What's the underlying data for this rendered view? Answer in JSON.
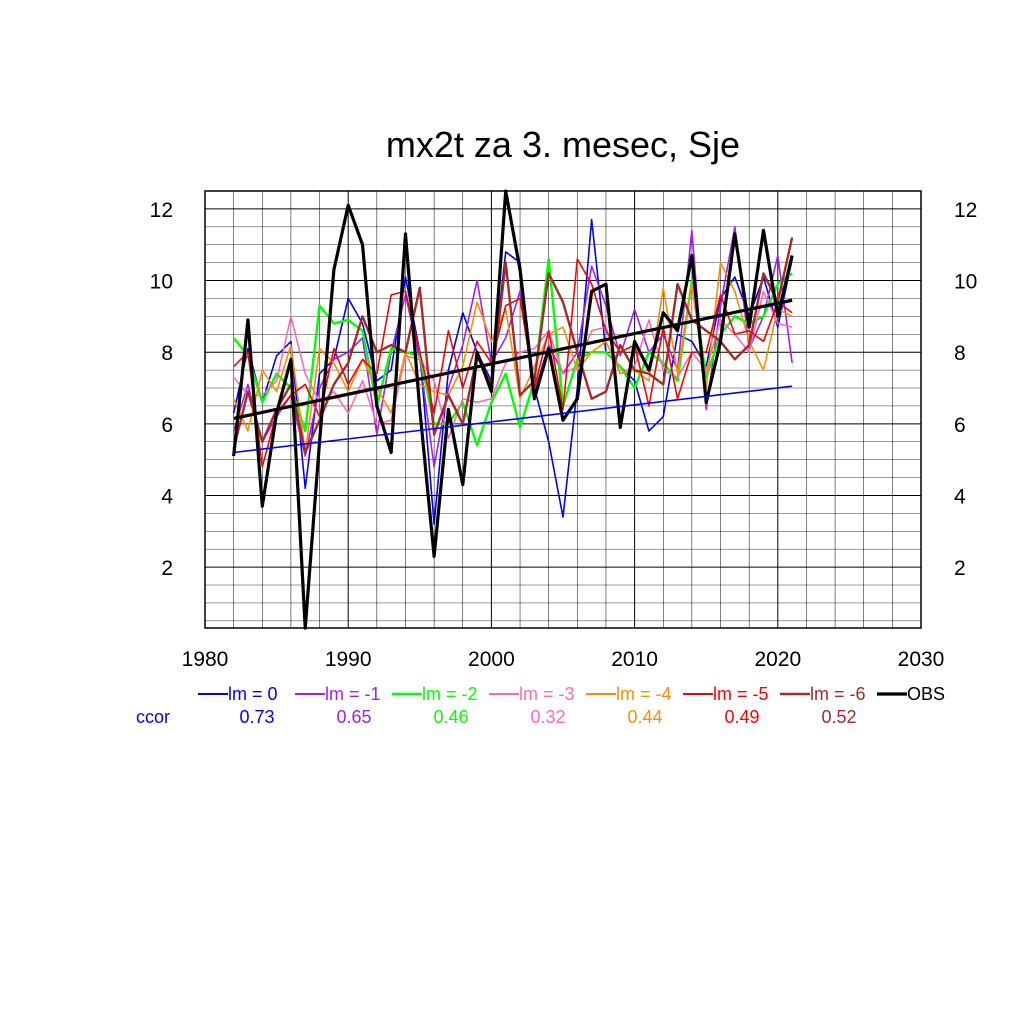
{
  "chart_data": {
    "type": "line",
    "title": "mx2t za 3. mesec, Sje",
    "xlim": [
      1980,
      2030
    ],
    "ylim": [
      0.3,
      12.5
    ],
    "xticks": [
      1980,
      1990,
      2000,
      2010,
      2020,
      2030
    ],
    "yticks": [
      2,
      4,
      6,
      8,
      10,
      12
    ],
    "x": [
      1982,
      1983,
      1984,
      1985,
      1986,
      1987,
      1988,
      1989,
      1990,
      1991,
      1992,
      1993,
      1994,
      1995,
      1996,
      1997,
      1998,
      1999,
      2000,
      2001,
      2002,
      2003,
      2004,
      2005,
      2006,
      2007,
      2008,
      2009,
      2010,
      2011,
      2012,
      2013,
      2014,
      2015,
      2016,
      2017,
      2018,
      2019,
      2020,
      2021
    ],
    "grid": true,
    "series": [
      {
        "name": "lm = 0",
        "color": "#0000ff",
        "width": 1.6,
        "ccor": "0.73",
        "values": [
          6.3,
          8.1,
          6.6,
          7.9,
          8.3,
          4.2,
          7.4,
          7.8,
          9.5,
          8.8,
          7.2,
          7.5,
          10.1,
          8.0,
          3.2,
          7.5,
          9.1,
          8.0,
          7.2,
          10.8,
          10.5,
          7.0,
          5.5,
          3.4,
          7.0,
          11.7,
          8.0,
          7.6,
          7.2,
          5.8,
          6.2,
          8.5,
          8.3,
          7.6,
          9.5,
          10.1,
          9.0,
          10.1,
          8.7,
          10.6
        ],
        "trend": [
          5.2,
          7.05
        ]
      },
      {
        "name": "lm = -1",
        "color": "#a020f0",
        "width": 1.6,
        "ccor": "0.65",
        "values": [
          5.8,
          7.1,
          5.5,
          6.2,
          6.8,
          5.1,
          7.0,
          7.8,
          8.0,
          8.4,
          5.7,
          8.0,
          9.6,
          7.8,
          4.8,
          7.0,
          8.2,
          10.0,
          7.7,
          8.4,
          9.7,
          6.9,
          8.2,
          7.4,
          8.0,
          10.4,
          9.3,
          7.9,
          9.2,
          8.0,
          8.5,
          7.5,
          11.4,
          6.4,
          9.3,
          11.5,
          8.1,
          9.0,
          10.7,
          7.7
        ]
      },
      {
        "name": "lm = -2",
        "color": "#00ff00",
        "width": 2.4,
        "ccor": "0.46",
        "values": [
          8.4,
          7.9,
          6.6,
          7.4,
          7.0,
          5.8,
          9.3,
          8.8,
          8.9,
          8.6,
          6.5,
          8.1,
          8.0,
          7.9,
          6.0,
          6.0,
          6.6,
          5.4,
          6.6,
          7.4,
          5.9,
          7.2,
          10.6,
          6.5,
          7.8,
          8.0,
          8.0,
          7.6,
          7.0,
          8.0,
          7.7,
          7.2,
          10.0,
          7.3,
          8.5,
          9.0,
          8.8,
          9.0,
          9.9,
          10.2
        ]
      },
      {
        "name": "lm = -3",
        "color": "#ff69b4",
        "width": 1.6,
        "ccor": "0.32",
        "values": [
          7.3,
          6.8,
          6.8,
          7.2,
          9.0,
          7.4,
          6.6,
          6.9,
          6.3,
          7.2,
          6.0,
          6.1,
          7.9,
          7.8,
          7.2,
          5.6,
          6.7,
          6.6,
          6.7,
          7.7,
          8.0,
          8.1,
          8.6,
          7.4,
          7.6,
          8.6,
          8.7,
          7.4,
          7.6,
          8.9,
          7.5,
          7.3,
          8.0,
          7.5,
          8.9,
          8.5,
          8.0,
          9.7,
          8.8,
          8.7
        ]
      },
      {
        "name": "lm = -4",
        "color": "#ff8c00",
        "width": 1.6,
        "ccor": "0.44",
        "values": [
          6.7,
          5.8,
          7.5,
          6.9,
          8.2,
          5.2,
          8.1,
          7.7,
          6.9,
          7.8,
          7.0,
          6.3,
          8.0,
          7.1,
          6.9,
          6.8,
          7.6,
          9.4,
          8.3,
          9.2,
          6.7,
          7.6,
          8.5,
          8.7,
          7.5,
          8.0,
          8.3,
          7.4,
          7.5,
          7.2,
          9.8,
          7.4,
          9.9,
          7.0,
          10.5,
          9.7,
          8.3,
          7.5,
          9.2,
          9.0
        ]
      },
      {
        "name": "lm = -5",
        "color": "#ff0000",
        "width": 1.6,
        "ccor": "0.49",
        "values": [
          7.6,
          8.0,
          4.8,
          6.3,
          6.8,
          7.1,
          6.2,
          8.1,
          7.1,
          7.8,
          7.4,
          9.6,
          9.7,
          8.0,
          6.3,
          8.6,
          7.0,
          8.3,
          7.7,
          9.3,
          9.5,
          7.0,
          8.6,
          6.4,
          10.6,
          9.9,
          8.6,
          8.0,
          8.2,
          6.5,
          8.7,
          6.7,
          8.0,
          8.0,
          9.6,
          8.5,
          8.6,
          8.3,
          9.4,
          9.1
        ]
      },
      {
        "name": "lm = -6",
        "color": "#a52a2a",
        "width": 2.4,
        "ccor": "0.52",
        "values": [
          5.3,
          6.9,
          5.5,
          6.4,
          7.1,
          5.2,
          6.1,
          7.1,
          7.7,
          9.0,
          8.0,
          8.2,
          8.0,
          9.8,
          5.7,
          6.8,
          6.0,
          7.9,
          7.1,
          10.5,
          6.8,
          7.2,
          10.2,
          9.4,
          8.0,
          6.7,
          6.9,
          8.2,
          7.5,
          7.4,
          7.1,
          9.9,
          8.9,
          8.6,
          8.3,
          7.8,
          8.2,
          10.2,
          9.4,
          11.2
        ]
      },
      {
        "name": "OBS",
        "color": "#000000",
        "width": 3.2,
        "ccor": null,
        "values": [
          5.1,
          8.9,
          3.7,
          6.3,
          7.8,
          0.3,
          5.5,
          10.3,
          12.1,
          11.0,
          6.5,
          5.2,
          11.3,
          6.4,
          2.3,
          6.4,
          4.3,
          8.0,
          6.9,
          12.5,
          10.3,
          6.7,
          8.1,
          6.1,
          6.7,
          9.7,
          9.9,
          5.9,
          8.3,
          7.5,
          9.1,
          8.6,
          10.7,
          6.6,
          8.3,
          11.3,
          8.7,
          11.4,
          9.0,
          10.7
        ],
        "trend": [
          6.15,
          9.45
        ]
      }
    ],
    "legend": {
      "position": "bottom",
      "ccor_label": "ccor",
      "ccor_color": "#0000ff"
    }
  }
}
